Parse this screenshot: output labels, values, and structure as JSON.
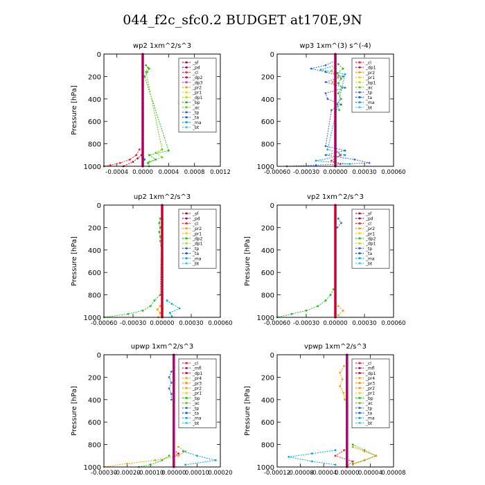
{
  "title": "044_f2c_sfc0.2  BUDGET at170E,9N",
  "colors": {
    "sf": "#cc0033",
    "pd": "#a0006e",
    "cl": "#ff2020",
    "dp2": "#e00040",
    "dp3": "#cc3399",
    "dp4": "#d40030",
    "mfl": "#b4007a",
    "pr2": "#ff9900",
    "pr1": "#ffcc00",
    "pr3": "#ff8800",
    "pr4": "#ffaa00",
    "dp1": "#c8d400",
    "bp": "#22bb22",
    "ac": "#66cc00",
    "tp": "#3366cc",
    "ta": "#1155ee",
    "ma": "#00aacc",
    "bt": "#33ccff"
  },
  "chart_data": [
    {
      "type": "line",
      "title": "wp2  1xm^2/s^3",
      "ylabel": "Pressure [hPa]",
      "xlim": [
        -0.0006,
        0.0012
      ],
      "ylim": [
        1000,
        0
      ],
      "xticks": [
        "-0.0004",
        "0.0000",
        "0.0004",
        "0.0008",
        "0.0012"
      ],
      "xtickvals": [
        -0.0004,
        0.0,
        0.0004,
        0.0008,
        0.0012
      ],
      "yticks": [
        "0",
        "200",
        "400",
        "600",
        "800",
        "1000"
      ],
      "legend": [
        {
          "name": "_sf",
          "color": "sf"
        },
        {
          "name": "_pd",
          "color": "pd"
        },
        {
          "name": "_cl",
          "color": "cl"
        },
        {
          "name": "_dp2",
          "color": "dp2"
        },
        {
          "name": "_dp3",
          "color": "dp3"
        },
        {
          "name": "_pr2",
          "color": "pr2"
        },
        {
          "name": "_pr1",
          "color": "pr1"
        },
        {
          "name": "_dp1",
          "color": "dp1"
        },
        {
          "name": "_bp",
          "color": "bp"
        },
        {
          "name": "_ac",
          "color": "ac"
        },
        {
          "name": "_tp",
          "color": "tp"
        },
        {
          "name": "_ta",
          "color": "ta"
        },
        {
          "name": "_ma",
          "color": "ma"
        },
        {
          "name": "_bt",
          "color": "bt"
        }
      ],
      "series": [
        {
          "name": "_bp",
          "color": "bp",
          "p": [
            100,
            130,
            160,
            200,
            860,
            900,
            940,
            970,
            1000
          ],
          "x": [
            5e-05,
            0.0001,
            7e-05,
            3e-05,
            0.0004,
            0.0001,
            0.0002,
            8e-05,
            0.0001
          ]
        },
        {
          "name": "_ac",
          "color": "ac",
          "p": [
            120,
            160,
            850,
            880,
            920,
            960
          ],
          "x": [
            8e-05,
            5e-05,
            0.0003,
            0.0002,
            0.0003,
            0.0001
          ]
        },
        {
          "name": "_cl",
          "color": "cl",
          "p": [
            850,
            900,
            940,
            970,
            990,
            1000
          ],
          "x": [
            -5e-05,
            -0.0001,
            -0.0002,
            -0.00035,
            -0.0005,
            -0.0006
          ]
        },
        {
          "name": "_sf",
          "color": "sf",
          "p": [
            900,
            930,
            960,
            1000
          ],
          "x": [
            -2e-05,
            -8e-05,
            -0.00015,
            -0.0003
          ]
        },
        {
          "name": "_tp",
          "color": "tp",
          "p": [
            900,
            940,
            980
          ],
          "x": [
            0.0,
            3e-05,
            0.0
          ]
        }
      ],
      "spine": {
        "name": "_pd",
        "color": "pd",
        "x": 0.0
      }
    },
    {
      "type": "line",
      "title": "wp3  1xm^(3) s^(-4)",
      "ylabel": "",
      "xlim": [
        -0.0006,
        0.0006
      ],
      "ylim": [
        1000,
        0
      ],
      "xticks": [
        "-0.00060",
        "-0.00030",
        "0.00000",
        "0.00030",
        "0.00060"
      ],
      "xtickvals": [
        -0.0006,
        -0.0003,
        0.0,
        0.0003,
        0.0006
      ],
      "yticks": [
        "0",
        "200",
        "400",
        "600",
        "800",
        "1000"
      ],
      "legend": [
        {
          "name": "_cl",
          "color": "cl"
        },
        {
          "name": "_dp1",
          "color": "dp2"
        },
        {
          "name": "_pr2",
          "color": "pr2"
        },
        {
          "name": "_pr1",
          "color": "pr1"
        },
        {
          "name": "_bp1",
          "color": "dp1"
        },
        {
          "name": "_ac",
          "color": "ac"
        },
        {
          "name": "_tp",
          "color": "tp"
        },
        {
          "name": "_ta",
          "color": "ta"
        },
        {
          "name": "_ma",
          "color": "ma"
        },
        {
          "name": "_bt",
          "color": "bt"
        }
      ],
      "series": [
        {
          "name": "_tp",
          "color": "tp",
          "p": [
            60,
            100,
            130,
            160,
            200,
            250,
            300,
            350,
            400,
            450,
            500,
            820,
            860,
            900,
            940,
            970,
            990,
            1000
          ],
          "x": [
            0.0,
            -0.0001,
            -0.00025,
            -0.0001,
            8e-05,
            -0.0001,
            0.0001,
            -0.0001,
            -8e-05,
            6e-05,
            -4e-05,
            -0.0001,
            0.0001,
            -0.0001,
            0.0002,
            0.00035,
            -0.0002,
            -0.0005
          ]
        },
        {
          "name": "_ma",
          "color": "ma",
          "p": [
            100,
            140,
            180,
            850,
            900,
            950,
            980
          ],
          "x": [
            0.0,
            -0.00015,
            0.0001,
            -8e-05,
            0.0001,
            -0.0002,
            0.00015
          ]
        },
        {
          "name": "_bp",
          "color": "bp",
          "p": [
            90,
            130,
            170,
            220,
            260,
            300,
            350,
            400,
            450,
            500
          ],
          "x": [
            3e-05,
            8e-05,
            2e-05,
            6e-05,
            3e-05,
            7e-05,
            3e-05,
            6e-05,
            2e-05,
            4e-05
          ]
        },
        {
          "name": "_pr2",
          "color": "pr2",
          "p": [
            100,
            150,
            200,
            250,
            300
          ],
          "x": [
            0.0,
            -4e-05,
            3e-05,
            -3e-05,
            0.0
          ]
        },
        {
          "name": "_cl",
          "color": "cl",
          "p": [
            850,
            900,
            950,
            980
          ],
          "x": [
            0.0,
            5e-05,
            -4e-05,
            5e-05
          ]
        }
      ],
      "spine": {
        "name": "_pd",
        "color": "pd",
        "x": 0.0
      }
    },
    {
      "type": "line",
      "title": "up2  1xm^2/s^3",
      "ylabel": "Pressure [hPa]",
      "xlim": [
        -0.0006,
        0.0006
      ],
      "ylim": [
        1000,
        0
      ],
      "xticks": [
        "-0.00060",
        "-0.00030",
        "0.00000",
        "0.00030",
        "0.00060"
      ],
      "xtickvals": [
        -0.0006,
        -0.0003,
        0.0,
        0.0003,
        0.0006
      ],
      "yticks": [
        "0",
        "200",
        "400",
        "600",
        "800",
        "1000"
      ],
      "legend": [
        {
          "name": "_sf",
          "color": "sf"
        },
        {
          "name": "_pd",
          "color": "pd"
        },
        {
          "name": "_cl",
          "color": "cl"
        },
        {
          "name": "_pr2",
          "color": "pr2"
        },
        {
          "name": "_pr1",
          "color": "pr1"
        },
        {
          "name": "_dp2",
          "color": "bp"
        },
        {
          "name": "_dp1",
          "color": "dp1"
        },
        {
          "name": "_tp",
          "color": "tp"
        },
        {
          "name": "_ta",
          "color": "ta"
        },
        {
          "name": "_ma",
          "color": "ma"
        },
        {
          "name": "_bt",
          "color": "bt"
        }
      ],
      "series": [
        {
          "name": "_dp2",
          "color": "bp",
          "p": [
            120,
            160,
            200,
            240,
            280,
            320,
            360,
            800,
            850,
            900,
            940,
            970,
            1000
          ],
          "x": [
            -2e-05,
            -3e-05,
            -2e-05,
            -3e-05,
            -2e-05,
            -2e-05,
            -1e-05,
            -2e-05,
            -8e-05,
            -0.00012,
            -0.0002,
            -0.00035,
            -0.0006
          ]
        },
        {
          "name": "_ma",
          "color": "ma",
          "p": [
            850,
            880,
            920,
            960,
            990
          ],
          "x": [
            5e-05,
            0.0001,
            0.00018,
            8e-05,
            0.0001
          ]
        },
        {
          "name": "_pr2",
          "color": "pr2",
          "p": [
            900,
            930,
            960,
            1000
          ],
          "x": [
            -2e-05,
            -5e-05,
            -2e-05,
            -4e-05
          ]
        }
      ],
      "spine": {
        "name": "_sf",
        "color": "sf",
        "x": 0.0
      }
    },
    {
      "type": "line",
      "title": "vp2  1xm^2/s^3",
      "ylabel": "Pressure [hPa]",
      "xlim": [
        -0.0006,
        0.0006
      ],
      "ylim": [
        1000,
        0
      ],
      "xticks": [
        "-0.00060",
        "-0.00030",
        "0.00000",
        "0.00030",
        "0.00060"
      ],
      "xtickvals": [
        -0.0006,
        -0.0003,
        0.0,
        0.0003,
        0.0006
      ],
      "yticks": [
        "0",
        "200",
        "400",
        "600",
        "800",
        "1000"
      ],
      "legend": [
        {
          "name": "_sf",
          "color": "sf"
        },
        {
          "name": "_pd",
          "color": "pd"
        },
        {
          "name": "_cl",
          "color": "cl"
        },
        {
          "name": "_pr2",
          "color": "pr2"
        },
        {
          "name": "_pr1",
          "color": "pr1"
        },
        {
          "name": "_dp2",
          "color": "bp"
        },
        {
          "name": "_dp1",
          "color": "dp1"
        },
        {
          "name": "_tp",
          "color": "tp"
        },
        {
          "name": "_ta",
          "color": "ta"
        },
        {
          "name": "_ma",
          "color": "ma"
        },
        {
          "name": "_bt",
          "color": "bt"
        }
      ],
      "series": [
        {
          "name": "_dp2",
          "color": "bp",
          "p": [
            750,
            800,
            850,
            900,
            940,
            970,
            1000
          ],
          "x": [
            -2e-05,
            -5e-05,
            -0.0001,
            -0.00018,
            -0.0003,
            -0.00045,
            -0.0006
          ]
        },
        {
          "name": "_tp",
          "color": "tp",
          "p": [
            120,
            160,
            200
          ],
          "x": [
            3e-05,
            6e-05,
            2e-05
          ]
        },
        {
          "name": "_pr2",
          "color": "pr2",
          "p": [
            900,
            940,
            980
          ],
          "x": [
            3e-05,
            8e-05,
            3e-05
          ]
        }
      ],
      "spine": {
        "name": "_sf",
        "color": "sf",
        "x": 0.0
      }
    },
    {
      "type": "line",
      "title": "upwp  1xm^2/s^3",
      "ylabel": "Pressure [hPa]",
      "xlim": [
        -0.0003,
        0.0002
      ],
      "ylim": [
        1000,
        0
      ],
      "xticks": [
        "-0.00030",
        "-0.00020",
        "-0.00010",
        "0.00000",
        "0.00010",
        "0.00020"
      ],
      "xtickvals": [
        -0.0003,
        -0.0002,
        -0.0001,
        0.0,
        0.0001,
        0.0002
      ],
      "yticks": [
        "0",
        "200",
        "400",
        "600",
        "800",
        "1000"
      ],
      "legend": [
        {
          "name": "_cl",
          "color": "cl"
        },
        {
          "name": "_mfl",
          "color": "mfl"
        },
        {
          "name": "_dp1",
          "color": "dp4"
        },
        {
          "name": "_pr4",
          "color": "pr4"
        },
        {
          "name": "_pr3",
          "color": "pr3"
        },
        {
          "name": "_pr2",
          "color": "pr2"
        },
        {
          "name": "_pr1",
          "color": "pr1"
        },
        {
          "name": "_bp",
          "color": "bp"
        },
        {
          "name": "_ac",
          "color": "ac"
        },
        {
          "name": "_tp",
          "color": "tp"
        },
        {
          "name": "_ta",
          "color": "ta"
        },
        {
          "name": "_ma",
          "color": "ma"
        },
        {
          "name": "_bt",
          "color": "bt"
        }
      ],
      "series": [
        {
          "name": "_tp",
          "color": "tp",
          "p": [
            150,
            200,
            250,
            300,
            350,
            400
          ],
          "x": [
            -1e-05,
            -2e-05,
            -1e-05,
            -2e-05,
            -1e-05,
            -1e-05
          ]
        },
        {
          "name": "_pr2",
          "color": "pr2",
          "p": [
            820,
            860,
            900,
            940,
            970,
            1000
          ],
          "x": [
            2e-05,
            5e-05,
            2e-05,
            -8e-05,
            -0.0002,
            -0.0003
          ]
        },
        {
          "name": "_ma",
          "color": "ma",
          "p": [
            860,
            900,
            940,
            980
          ],
          "x": [
            4e-05,
            0.0001,
            0.00018,
            5e-05
          ]
        },
        {
          "name": "_dp1",
          "color": "dp4",
          "p": [
            850,
            880,
            910
          ],
          "x": [
            0.0,
            2e-05,
            0.0
          ]
        },
        {
          "name": "_bp",
          "color": "bp",
          "p": [
            900,
            940,
            980,
            1000
          ],
          "x": [
            -2e-05,
            -5e-05,
            -0.0001,
            -0.00015
          ]
        }
      ],
      "spine": {
        "name": "_mfl",
        "color": "mfl",
        "x": 0.0
      }
    },
    {
      "type": "line",
      "title": "vpwp  1xm^2/s^3",
      "ylabel": "Pressure [hPa]",
      "xlim": [
        -0.00012,
        8e-05
      ],
      "ylim": [
        1000,
        0
      ],
      "xticks": [
        "-0.00012",
        "-0.00008",
        "-0.00004",
        "0.00000",
        "0.00004",
        "0.00008"
      ],
      "xtickvals": [
        -0.00012,
        -8e-05,
        -4e-05,
        0.0,
        4e-05,
        8e-05
      ],
      "yticks": [
        "0",
        "200",
        "400",
        "600",
        "800",
        "1000"
      ],
      "legend": [
        {
          "name": "_cl",
          "color": "cl"
        },
        {
          "name": "_mfl",
          "color": "mfl"
        },
        {
          "name": "_dp1",
          "color": "dp4"
        },
        {
          "name": "_pr4",
          "color": "pr4"
        },
        {
          "name": "_pr3",
          "color": "pr3"
        },
        {
          "name": "_pr2",
          "color": "pr2"
        },
        {
          "name": "_pr1",
          "color": "pr1"
        },
        {
          "name": "_bp",
          "color": "bp"
        },
        {
          "name": "_ac",
          "color": "ac"
        },
        {
          "name": "_tp",
          "color": "tp"
        },
        {
          "name": "_ta",
          "color": "ta"
        },
        {
          "name": "_ma",
          "color": "ma"
        },
        {
          "name": "_bt",
          "color": "bt"
        }
      ],
      "series": [
        {
          "name": "_pr2",
          "color": "pr2",
          "p": [
            100,
            160,
            220,
            280,
            340,
            400
          ],
          "x": [
            -5e-06,
            -1.2e-05,
            -8e-06,
            -1.2e-05,
            -6e-06,
            -4e-06
          ]
        },
        {
          "name": "_bp",
          "color": "bp",
          "p": [
            800,
            850,
            900,
            940,
            970
          ],
          "x": [
            1e-05,
            3e-05,
            5e-05,
            3e-05,
            1e-05
          ]
        },
        {
          "name": "_pr3",
          "color": "pr3",
          "p": [
            820,
            860,
            900,
            940,
            980
          ],
          "x": [
            1e-05,
            3e-05,
            5e-05,
            3e-05,
            1e-05
          ]
        },
        {
          "name": "_ma",
          "color": "ma",
          "p": [
            850,
            880,
            910,
            950,
            980
          ],
          "x": [
            -2e-05,
            -6e-05,
            -0.0001,
            -6e-05,
            -2e-05
          ]
        },
        {
          "name": "_cl",
          "color": "cl",
          "p": [
            850,
            900,
            950,
            990
          ],
          "x": [
            -5e-06,
            -2e-05,
            1e-05,
            0.0
          ]
        }
      ],
      "spine": {
        "name": "_mfl",
        "color": "mfl",
        "x": 0.0
      }
    }
  ]
}
